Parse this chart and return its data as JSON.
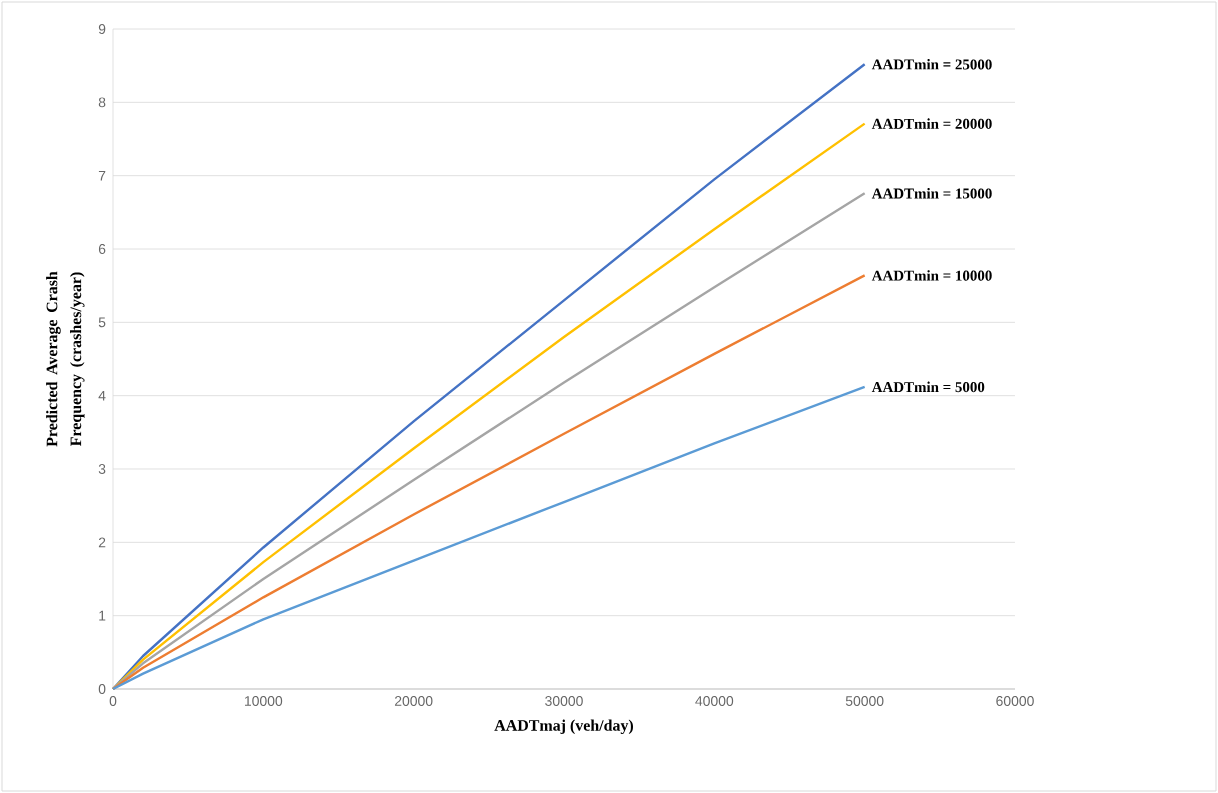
{
  "chart_data": {
    "type": "line",
    "xlabel": "AADTmaj (veh/day)",
    "ylabel": "Predicted Average Crash Frequency (crashes/year)",
    "xlim": [
      0,
      60000
    ],
    "xticks": [
      0,
      10000,
      20000,
      30000,
      40000,
      50000,
      60000
    ],
    "ylim": [
      0,
      9
    ],
    "yticks": [
      0,
      1,
      2,
      3,
      4,
      5,
      6,
      7,
      8,
      9
    ],
    "grid": "y",
    "marker": "none",
    "line_style": "solid",
    "x": [
      0,
      2000,
      10000,
      20000,
      30000,
      40000,
      50000
    ],
    "series": [
      {
        "name": "AADTmin = 25000",
        "color": "#4472c4",
        "values": [
          0,
          0.45,
          1.93,
          3.65,
          5.3,
          6.95,
          8.52
        ]
      },
      {
        "name": "AADTmin = 20000",
        "color": "#ffc000",
        "values": [
          0,
          0.4,
          1.73,
          3.28,
          4.8,
          6.27,
          7.71
        ]
      },
      {
        "name": "AADTmin = 15000",
        "color": "#a5a5a5",
        "values": [
          0,
          0.35,
          1.5,
          2.85,
          4.18,
          5.48,
          6.76
        ]
      },
      {
        "name": "AADTmin = 10000",
        "color": "#ed7d31",
        "values": [
          0,
          0.29,
          1.25,
          2.38,
          3.48,
          4.57,
          5.64
        ]
      },
      {
        "name": "AADTmin = 5000",
        "color": "#5b9bd5",
        "values": [
          0,
          0.21,
          0.95,
          1.75,
          2.55,
          3.35,
          4.12
        ]
      }
    ]
  }
}
